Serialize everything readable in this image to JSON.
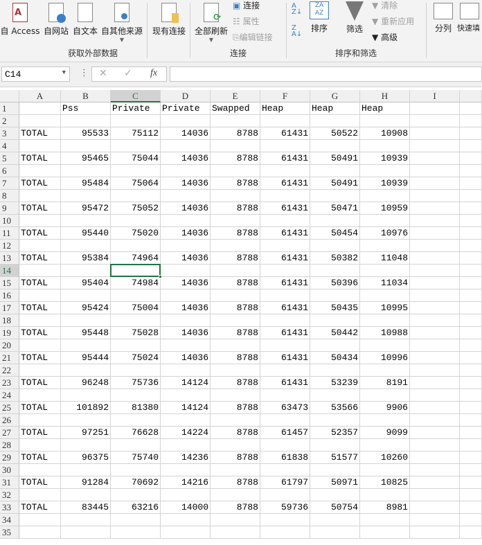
{
  "ribbon": {
    "buttons": [
      {
        "label": "自 Access",
        "icon": "access-database-icon"
      },
      {
        "label": "自网站",
        "icon": "web-icon"
      },
      {
        "label": "自文本",
        "icon": "text-file-icon"
      },
      {
        "label": "自其他来源",
        "icon": "other-sources-icon"
      },
      {
        "label": "现有连接",
        "icon": "existing-connections-icon"
      },
      {
        "label": "全部刷新",
        "icon": "refresh-all-icon"
      },
      {
        "label": "排序",
        "icon": "sort-icon"
      },
      {
        "label": "筛选",
        "icon": "filter-icon"
      },
      {
        "label": "分列",
        "icon": "text-to-columns-icon"
      },
      {
        "label": "快速填",
        "icon": "flash-fill-icon"
      }
    ],
    "small": {
      "connections": "连接",
      "properties": "属性",
      "edit_links": "编辑链接",
      "clear": "清除",
      "reapply": "重新应用",
      "advanced": "高级"
    },
    "groups": {
      "external": "获取外部数据",
      "connections": "连接",
      "sort_filter": "排序和筛选"
    }
  },
  "formula_bar": {
    "name_box": "C14",
    "formula": ""
  },
  "grid": {
    "columns": [
      "A",
      "B",
      "C",
      "D",
      "E",
      "F",
      "G",
      "H",
      "I"
    ],
    "selected_col": "C",
    "selected_row": 14,
    "headers": [
      "",
      "Pss",
      "Private",
      "Private",
      "Swapped",
      "Heap",
      "Heap",
      "Heap"
    ],
    "row_count": 35,
    "rows": [
      [
        "TOTAL",
        95533,
        75112,
        14036,
        8788,
        61431,
        50522,
        10908
      ],
      [
        "TOTAL",
        95465,
        75044,
        14036,
        8788,
        61431,
        50491,
        10939
      ],
      [
        "TOTAL",
        95484,
        75064,
        14036,
        8788,
        61431,
        50491,
        10939
      ],
      [
        "TOTAL",
        95472,
        75052,
        14036,
        8788,
        61431,
        50471,
        10959
      ],
      [
        "TOTAL",
        95440,
        75020,
        14036,
        8788,
        61431,
        50454,
        10976
      ],
      [
        "TOTAL",
        95384,
        74964,
        14036,
        8788,
        61431,
        50382,
        11048
      ],
      [
        "TOTAL",
        95404,
        74984,
        14036,
        8788,
        61431,
        50396,
        11034
      ],
      [
        "TOTAL",
        95424,
        75004,
        14036,
        8788,
        61431,
        50435,
        10995
      ],
      [
        "TOTAL",
        95448,
        75028,
        14036,
        8788,
        61431,
        50442,
        10988
      ],
      [
        "TOTAL",
        95444,
        75024,
        14036,
        8788,
        61431,
        50434,
        10996
      ],
      [
        "TOTAL",
        96248,
        75736,
        14124,
        8788,
        61431,
        53239,
        8191
      ],
      [
        "TOTAL",
        101892,
        81380,
        14124,
        8788,
        63473,
        53566,
        9906
      ],
      [
        "TOTAL",
        97251,
        76628,
        14224,
        8788,
        61457,
        52357,
        9099
      ],
      [
        "TOTAL",
        96375,
        75740,
        14236,
        8788,
        61838,
        51577,
        10260
      ],
      [
        "TOTAL",
        91284,
        70692,
        14216,
        8788,
        61797,
        50971,
        10825
      ],
      [
        "TOTAL",
        83445,
        63216,
        14000,
        8788,
        59736,
        50754,
        8981
      ]
    ]
  }
}
